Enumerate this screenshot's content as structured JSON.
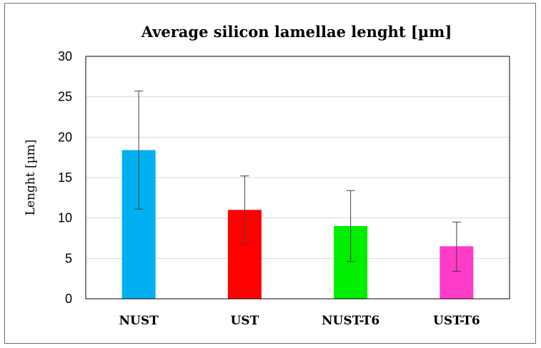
{
  "chart_data": {
    "type": "bar",
    "title": "Average silicon lamellae lenght [µm]",
    "xlabel": "",
    "ylabel": "Lenght [µm]",
    "ylim": [
      0,
      30
    ],
    "yticks": [
      0,
      5,
      10,
      15,
      20,
      25,
      30
    ],
    "grid": true,
    "categories": [
      "NUST",
      "UST",
      "NUST-T6",
      "UST-T6"
    ],
    "values": [
      18.4,
      11.0,
      9.0,
      6.5
    ],
    "error_low": [
      11.1,
      6.8,
      4.6,
      3.4
    ],
    "error_high": [
      25.7,
      15.2,
      13.4,
      9.5
    ],
    "colors": [
      "#00b0f0",
      "#ff0000",
      "#00ee00",
      "#ff3cc8"
    ]
  }
}
